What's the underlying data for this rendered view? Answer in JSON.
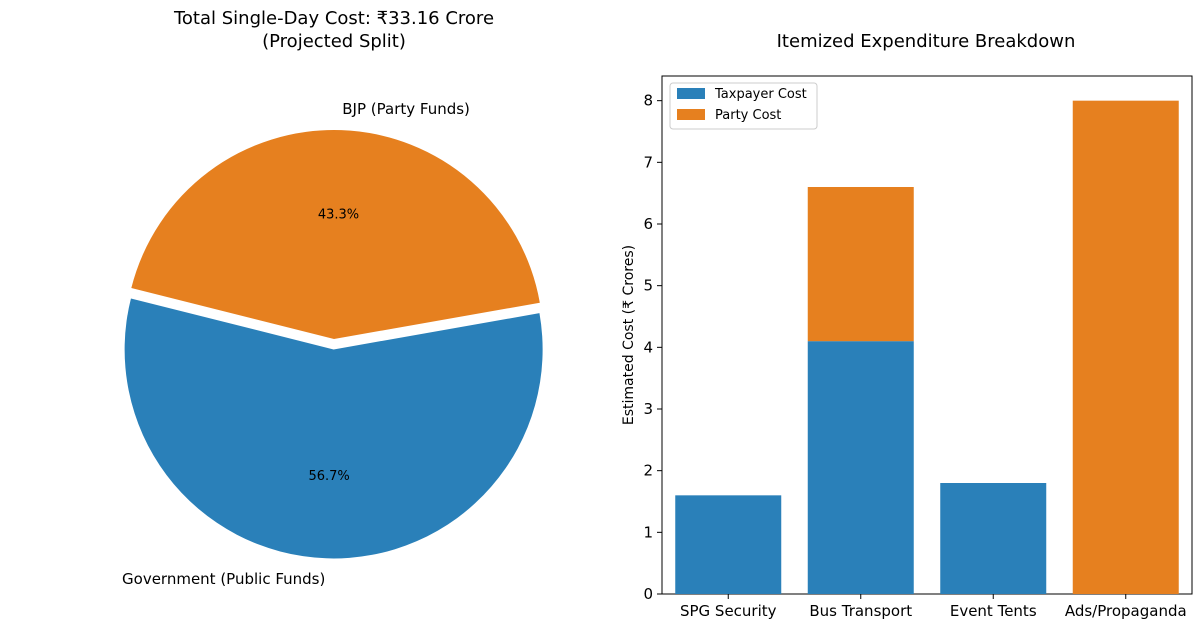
{
  "chart_data": [
    {
      "type": "pie",
      "title": "Total Single-Day Cost: ₹33.16 Crore",
      "subtitle": "(Projected Split)",
      "slices": [
        {
          "name": "BJP (Party Funds)",
          "value": 43.3,
          "pct_label": "43.3%",
          "color": "#e6801f",
          "exploded": false
        },
        {
          "name": "Government (Public Funds)",
          "value": 56.7,
          "pct_label": "56.7%",
          "color": "#2a80b9",
          "exploded": true
        }
      ]
    },
    {
      "type": "bar",
      "stacked": true,
      "title": "Itemized Expenditure Breakdown",
      "xlabel": "",
      "ylabel": "Estimated Cost (₹ Crores)",
      "ylim": [
        0,
        8.4
      ],
      "yticks": [
        0,
        1,
        2,
        3,
        4,
        5,
        6,
        7,
        8
      ],
      "categories": [
        "SPG Security",
        "Bus Transport",
        "Event Tents",
        "Ads/Propaganda"
      ],
      "series": [
        {
          "name": "Taxpayer Cost",
          "color": "#2a80b9",
          "values": [
            1.6,
            4.1,
            1.8,
            0
          ]
        },
        {
          "name": "Party Cost",
          "color": "#e6801f",
          "values": [
            0,
            2.5,
            0,
            8.0
          ]
        }
      ],
      "legend": "top-left"
    }
  ]
}
